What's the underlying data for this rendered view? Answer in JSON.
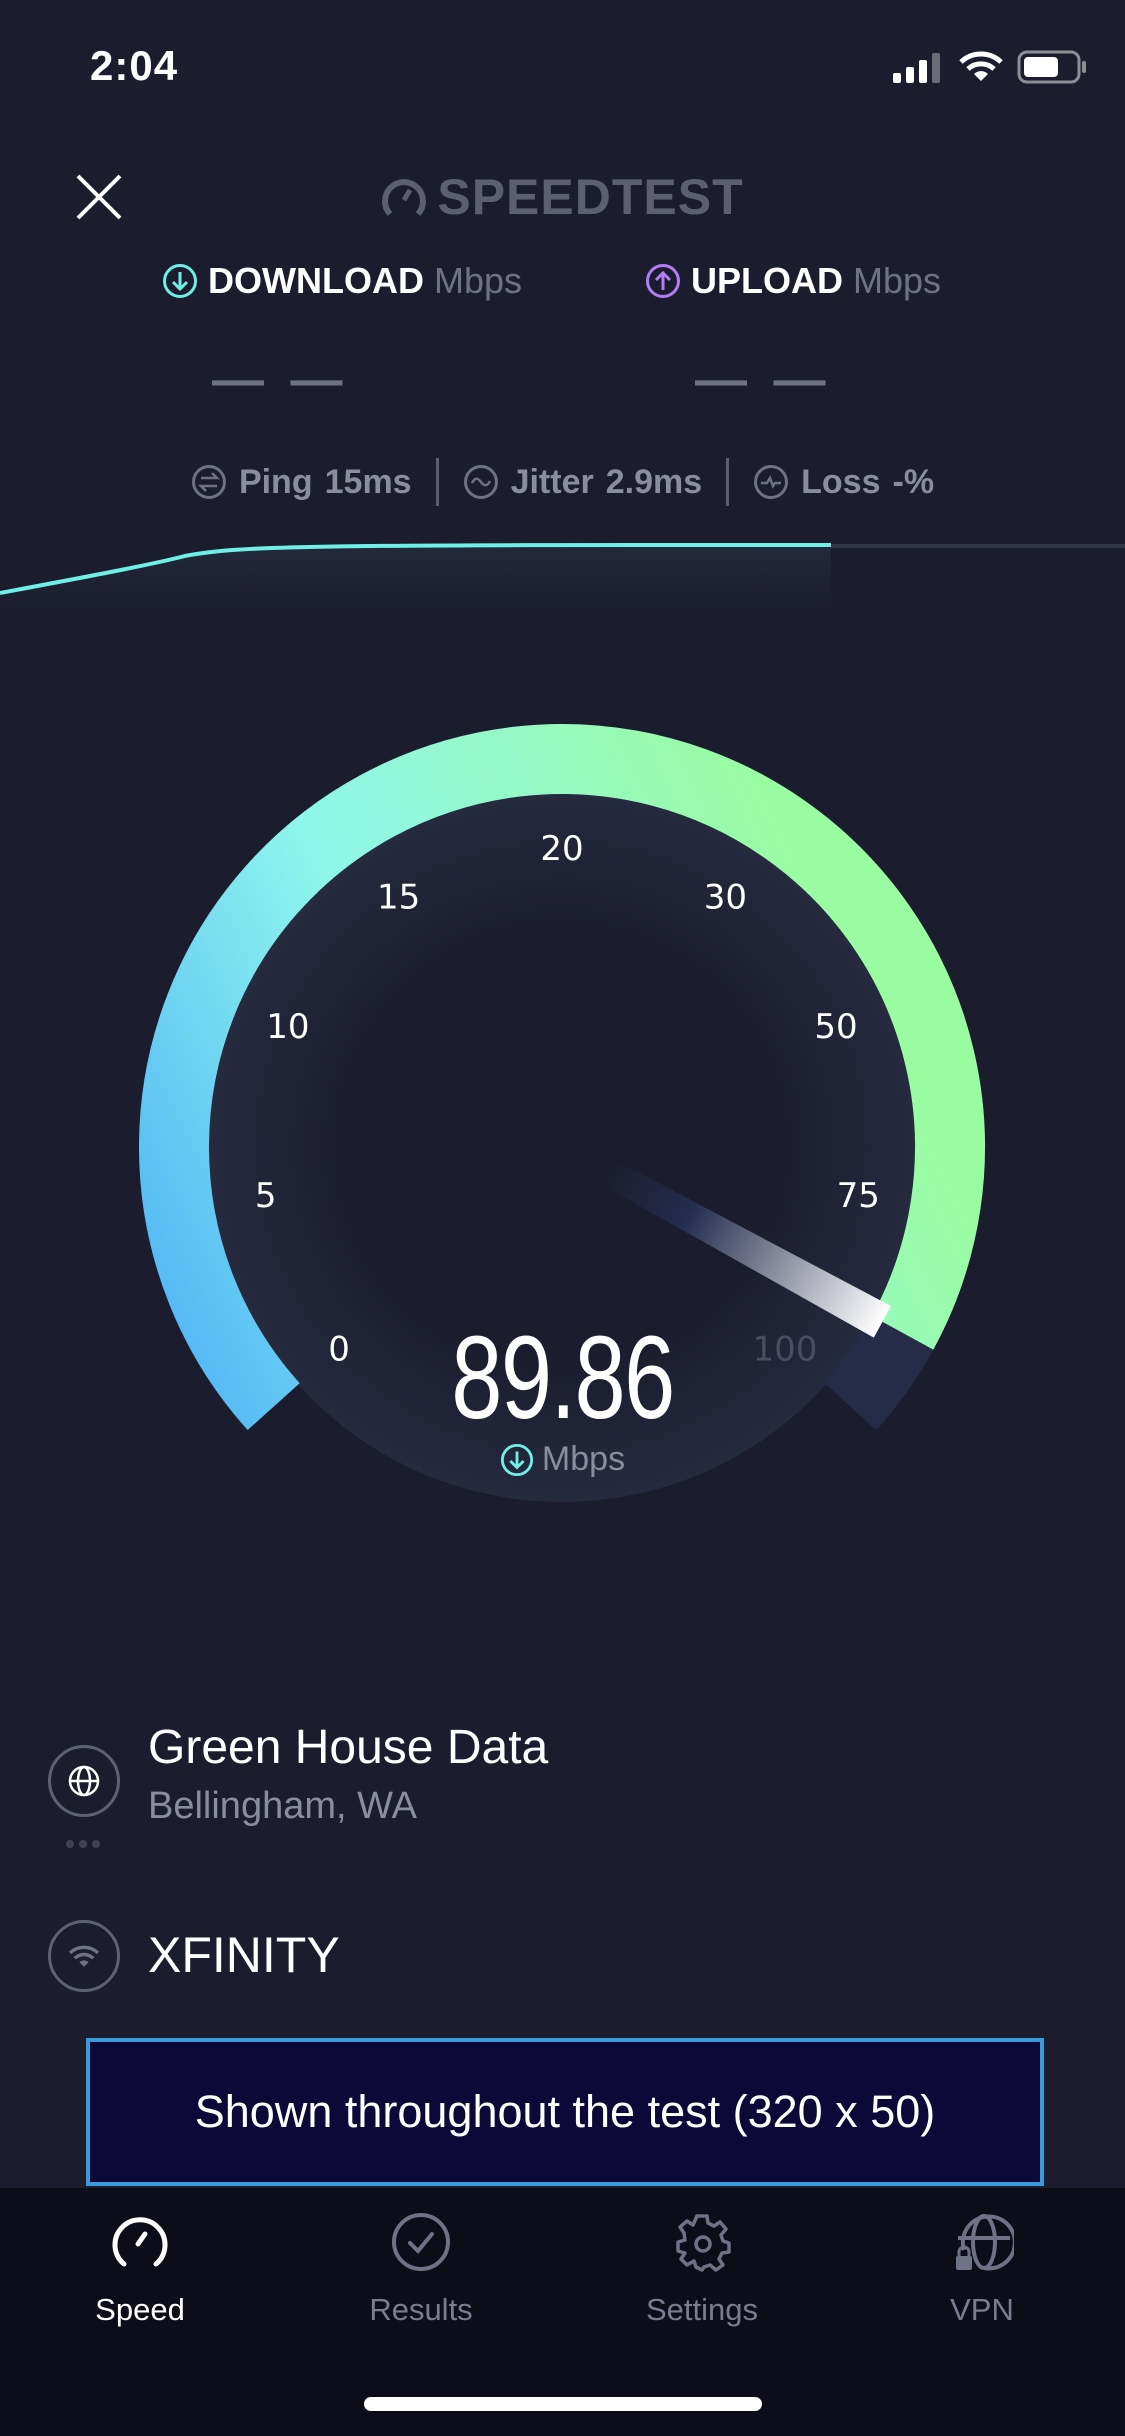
{
  "status_bar": {
    "time": "2:04",
    "icons": [
      "cellular-signal-icon",
      "wifi-icon",
      "battery-icon"
    ]
  },
  "header": {
    "close_icon": "close-icon",
    "logo_text": "SPEEDTEST"
  },
  "download": {
    "label": "DOWNLOAD",
    "unit": "Mbps",
    "value": "— —",
    "color": "#6ff0e6"
  },
  "upload": {
    "label": "UPLOAD",
    "unit": "Mbps",
    "value": "— —",
    "color": "#b47cf5"
  },
  "stats": {
    "ping": {
      "label": "Ping",
      "value": "15",
      "unit": "ms"
    },
    "jitter": {
      "label": "Jitter",
      "value": "2.9",
      "unit": "ms"
    },
    "loss": {
      "label": "Loss",
      "value": "-",
      "unit": "%"
    }
  },
  "gauge": {
    "ticks": [
      "0",
      "5",
      "10",
      "15",
      "20",
      "30",
      "50",
      "75",
      "100"
    ],
    "tick_values": [
      0,
      5,
      10,
      15,
      20,
      30,
      50,
      75,
      100
    ],
    "current_value": "89.86",
    "unit": "Mbps",
    "colors": {
      "start": "#4fb3f6",
      "mid": "#8ff6ec",
      "end": "#9afca0",
      "track": "#262b48"
    }
  },
  "server": {
    "name": "Green House Data",
    "location": "Bellingham, WA"
  },
  "isp": {
    "name": "XFINITY"
  },
  "ad": {
    "text": "Shown throughout the test (320 x 50)"
  },
  "tabs": [
    {
      "label": "Speed",
      "icon": "speedometer-icon",
      "active": true
    },
    {
      "label": "Results",
      "icon": "check-circle-icon",
      "active": false
    },
    {
      "label": "Settings",
      "icon": "gear-icon",
      "active": false
    },
    {
      "label": "VPN",
      "icon": "globe-lock-icon",
      "active": false
    }
  ]
}
